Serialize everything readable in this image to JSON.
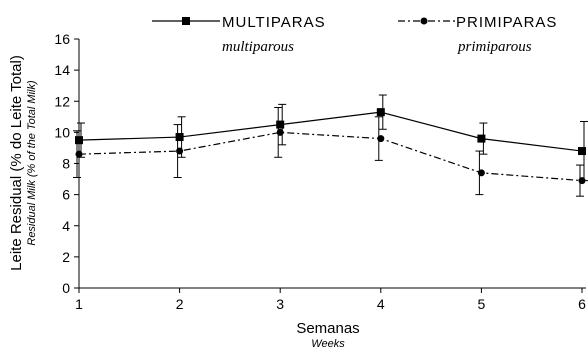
{
  "chart_data": {
    "type": "line",
    "x": [
      1,
      2,
      3,
      4,
      5,
      6
    ],
    "xlabel": "Semanas",
    "xlabel_sub": "Weeks",
    "ylabel": "Leite Residual (% do Leite Total)",
    "ylabel_sub": "Residual Milk (% of the Total Milk)",
    "xlim": [
      1,
      6
    ],
    "ylim": [
      0,
      16
    ],
    "x_ticks": [
      "1",
      "2",
      "3",
      "4",
      "5",
      "6"
    ],
    "y_ticks": [
      "0",
      "2",
      "4",
      "6",
      "8",
      "10",
      "12",
      "14",
      "16"
    ],
    "grid": false,
    "legend_position": "top",
    "series": [
      {
        "name": "MULTIPARAS",
        "name_sub": "multiparous",
        "marker": "square",
        "line_style": "solid",
        "values": [
          9.5,
          9.7,
          10.5,
          11.3,
          9.6,
          8.8
        ],
        "error": [
          1.1,
          1.3,
          1.3,
          1.1,
          1.0,
          1.9
        ]
      },
      {
        "name": "PRIMIPARAS",
        "name_sub": "primiparous",
        "marker": "circle",
        "line_style": "dash-dot",
        "values": [
          8.6,
          8.8,
          10.0,
          9.6,
          7.4,
          6.9
        ],
        "error": [
          1.5,
          1.7,
          1.6,
          1.4,
          1.4,
          1.0
        ]
      }
    ]
  }
}
